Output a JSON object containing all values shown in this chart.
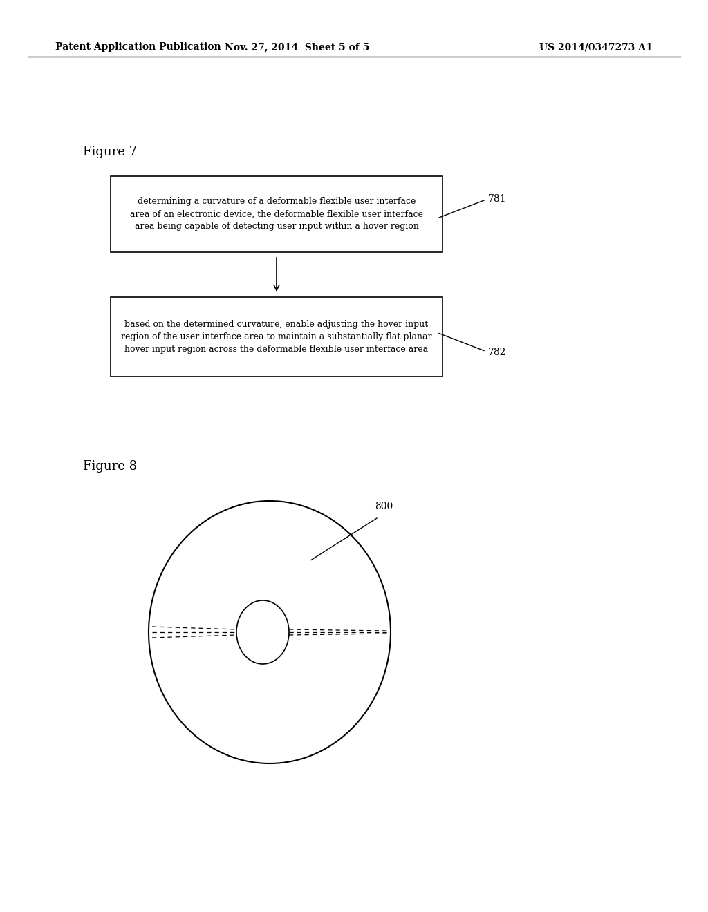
{
  "background_color": "#ffffff",
  "header_text": "Patent Application Publication",
  "header_date": "Nov. 27, 2014  Sheet 5 of 5",
  "header_patent": "US 2014/0347273 A1",
  "fig7_label": "Figure 7",
  "fig8_label": "Figure 8",
  "box1_text": "determining a curvature of a deformable flexible user interface\narea of an electronic device, the deformable flexible user interface\narea being capable of detecting user input within a hover region",
  "box1_label": "781",
  "box2_text": "based on the determined curvature, enable adjusting the hover input\nregion of the user interface area to maintain a substantially flat planar\nhover input region across the deformable flexible user interface area",
  "box2_label": "782",
  "label800": "800",
  "font_size_header": 10,
  "font_size_fig_label": 13,
  "font_size_box": 9,
  "font_size_ref": 10
}
